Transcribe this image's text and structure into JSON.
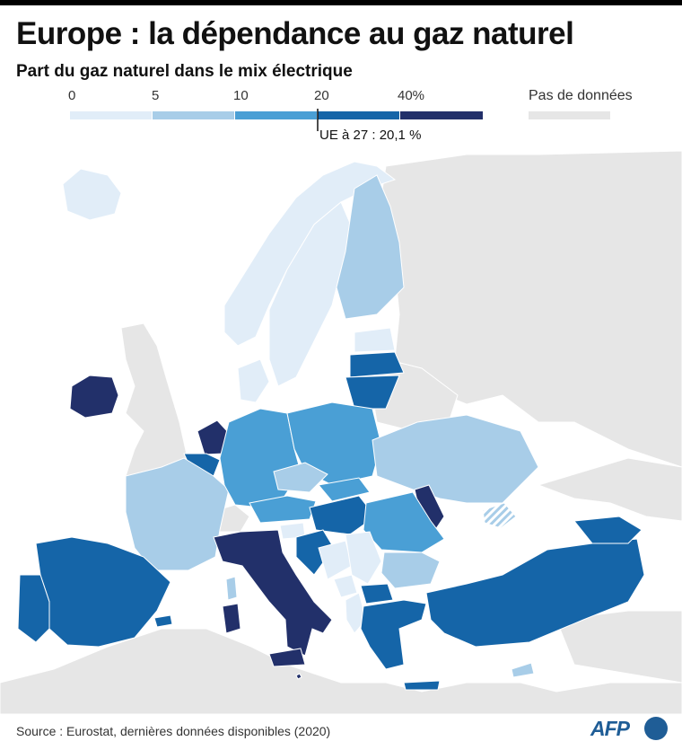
{
  "header": {
    "title": "Europe : la dépendance au gaz naturel",
    "subtitle": "Part du gaz naturel dans le mix électrique"
  },
  "legend": {
    "ticks": [
      "0",
      "5",
      "10",
      "20",
      "40%"
    ],
    "bins": [
      {
        "range": "0–5",
        "color": "#e1edf8"
      },
      {
        "range": "5–10",
        "color": "#a8cde8"
      },
      {
        "range": "10–20",
        "color": "#4a9fd5"
      },
      {
        "range": "20–40",
        "color": "#1565a8"
      },
      {
        "range": "40+",
        "color": "#22306a"
      }
    ],
    "no_data_label": "Pas de données",
    "no_data_color": "#e6e6e6",
    "eu_average": {
      "label": "UE à 27 : 20,1 %",
      "value": 20.1
    }
  },
  "map_data": {
    "regions": [
      {
        "name": "Islande",
        "bin": "0–5"
      },
      {
        "name": "Norvège",
        "bin": "0–5"
      },
      {
        "name": "Suède",
        "bin": "0–5"
      },
      {
        "name": "Finlande",
        "bin": "5–10"
      },
      {
        "name": "Estonie",
        "bin": "0–5"
      },
      {
        "name": "Lettonie",
        "bin": "20–40"
      },
      {
        "name": "Lituanie",
        "bin": "20–40"
      },
      {
        "name": "Irlande",
        "bin": "40+"
      },
      {
        "name": "Pays-Bas",
        "bin": "40+"
      },
      {
        "name": "Belgique",
        "bin": "20–40"
      },
      {
        "name": "Luxembourg",
        "bin": "10–20"
      },
      {
        "name": "France",
        "bin": "5–10"
      },
      {
        "name": "Danemark",
        "bin": "0–5"
      },
      {
        "name": "Allemagne",
        "bin": "10–20"
      },
      {
        "name": "Pologne",
        "bin": "10–20"
      },
      {
        "name": "Tchéquie",
        "bin": "5–10"
      },
      {
        "name": "Slovaquie",
        "bin": "10–20"
      },
      {
        "name": "Autriche",
        "bin": "10–20"
      },
      {
        "name": "Hongrie",
        "bin": "20–40"
      },
      {
        "name": "Suisse",
        "bin": "no data"
      },
      {
        "name": "Ukraine",
        "bin": "5–10"
      },
      {
        "name": "Moldavie",
        "bin": "40+"
      },
      {
        "name": "Roumanie",
        "bin": "10–20"
      },
      {
        "name": "Bulgarie",
        "bin": "5–10"
      },
      {
        "name": "Slovénie",
        "bin": "0–5"
      },
      {
        "name": "Croatie",
        "bin": "20–40"
      },
      {
        "name": "Bosnie-Herzégovine",
        "bin": "0–5"
      },
      {
        "name": "Serbie",
        "bin": "0–5"
      },
      {
        "name": "Monténégro",
        "bin": "0–5"
      },
      {
        "name": "Albanie",
        "bin": "0–5"
      },
      {
        "name": "Macédoine du Nord",
        "bin": "20–40"
      },
      {
        "name": "Italie",
        "bin": "40+"
      },
      {
        "name": "Sardaigne",
        "bin": "40+"
      },
      {
        "name": "Corse",
        "bin": "5–10"
      },
      {
        "name": "Espagne",
        "bin": "20–40"
      },
      {
        "name": "Portugal",
        "bin": "20–40"
      },
      {
        "name": "Baléares",
        "bin": "20–40"
      },
      {
        "name": "Grèce",
        "bin": "20–40"
      },
      {
        "name": "Turquie",
        "bin": "20–40"
      },
      {
        "name": "Géorgie",
        "bin": "20–40"
      },
      {
        "name": "Chypre",
        "bin": "5–10"
      },
      {
        "name": "Malte",
        "bin": "40+"
      },
      {
        "name": "Crimée",
        "bin": "hatched"
      }
    ]
  },
  "footer": {
    "source": "Source : Eurostat, dernières données disponibles (2020)",
    "logo": "AFP"
  }
}
